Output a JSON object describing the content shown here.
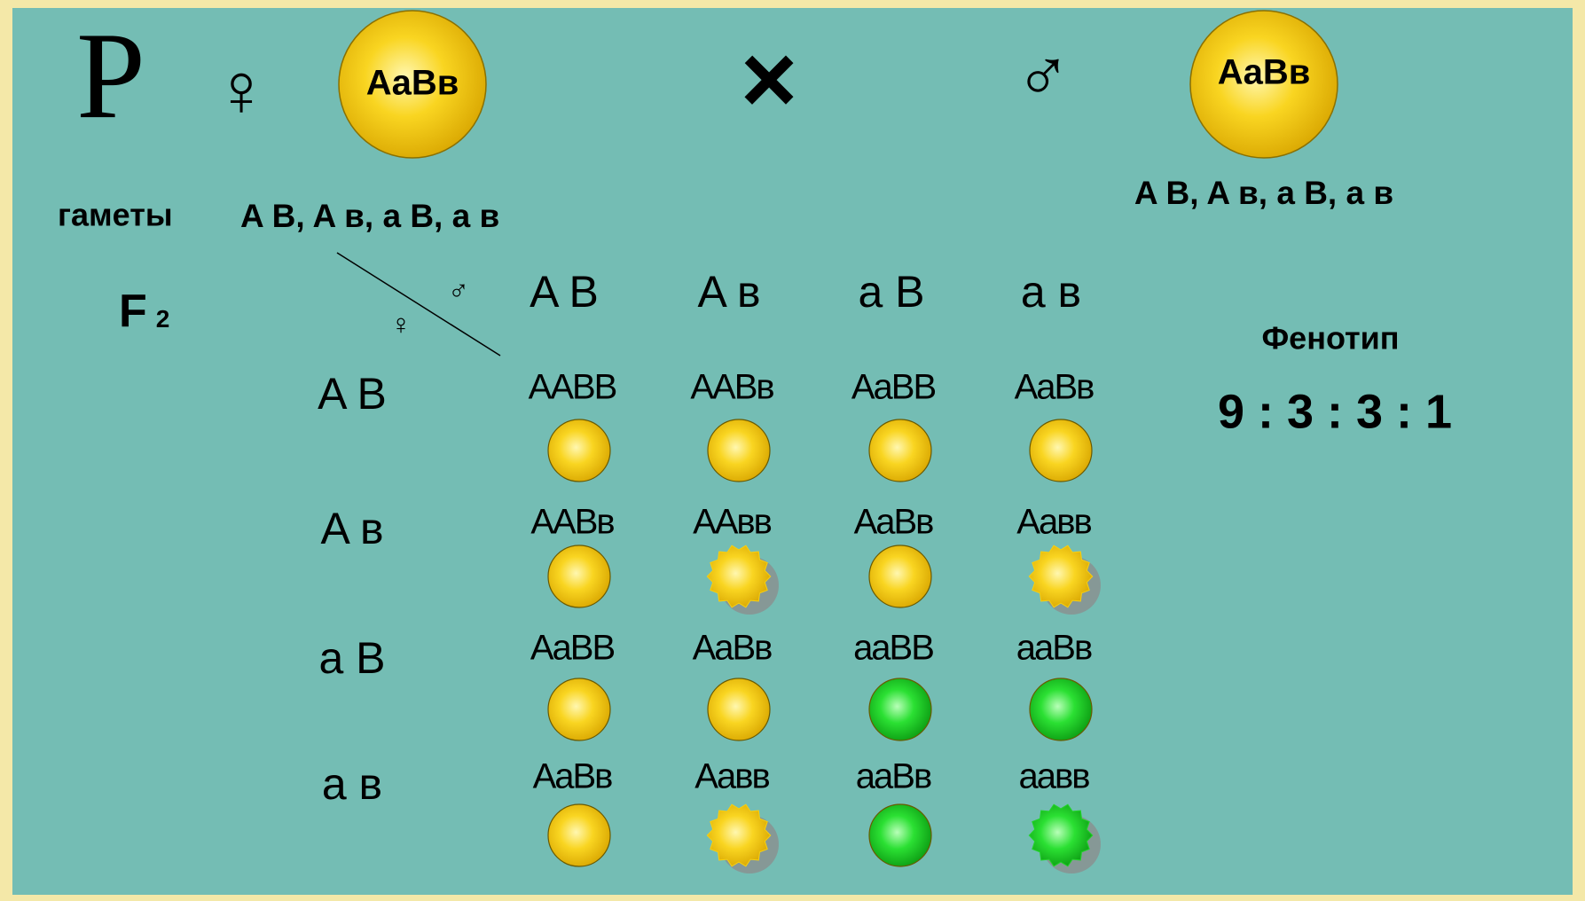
{
  "header": {
    "p": "P",
    "female_symbol": "♀",
    "female_genotype": "AaBв",
    "cross": "×",
    "male_symbol": "♂",
    "male_genotype": "AaBв"
  },
  "gametes": {
    "label": "гаметы",
    "female": "A B, A в, a B, a в",
    "male": "A B, A в, a B, a в"
  },
  "f2": {
    "label": "F",
    "subscript": "2"
  },
  "punnett": {
    "corner_male": "♂",
    "corner_female": "♀",
    "columns": [
      "A B",
      "A в",
      "a B",
      "a в"
    ],
    "rows": [
      "A B",
      "A в",
      "a B",
      "a в"
    ],
    "cells": [
      [
        {
          "genotype": "AABB",
          "color": "#f7cf10",
          "wrinkled": false
        },
        {
          "genotype": "AABв",
          "color": "#f7cf10",
          "wrinkled": false
        },
        {
          "genotype": "AaBB",
          "color": "#f7cf10",
          "wrinkled": false
        },
        {
          "genotype": "AaBв",
          "color": "#f7cf10",
          "wrinkled": false
        }
      ],
      [
        {
          "genotype": "AABв",
          "color": "#f7cf10",
          "wrinkled": false
        },
        {
          "genotype": "AAвв",
          "color": "#f7cf10",
          "wrinkled": true
        },
        {
          "genotype": "AaBв",
          "color": "#f7cf10",
          "wrinkled": false
        },
        {
          "genotype": "Aaвв",
          "color": "#f7cf10",
          "wrinkled": true
        }
      ],
      [
        {
          "genotype": "AaBB",
          "color": "#f7cf10",
          "wrinkled": false
        },
        {
          "genotype": "AaBв",
          "color": "#f7cf10",
          "wrinkled": false
        },
        {
          "genotype": "aaBB",
          "color": "#22d42a",
          "wrinkled": false
        },
        {
          "genotype": "aaBв",
          "color": "#22d42a",
          "wrinkled": false
        }
      ],
      [
        {
          "genotype": "AaBв",
          "color": "#f7cf10",
          "wrinkled": false
        },
        {
          "genotype": "Aaвв",
          "color": "#f7cf10",
          "wrinkled": true
        },
        {
          "genotype": "aaBв",
          "color": "#22d42a",
          "wrinkled": false
        },
        {
          "genotype": "aaвв",
          "color": "#22d42a",
          "wrinkled": true
        }
      ]
    ]
  },
  "phenotype": {
    "label": "Фенотип",
    "ratio": "9 : 3 : 3 : 1"
  }
}
